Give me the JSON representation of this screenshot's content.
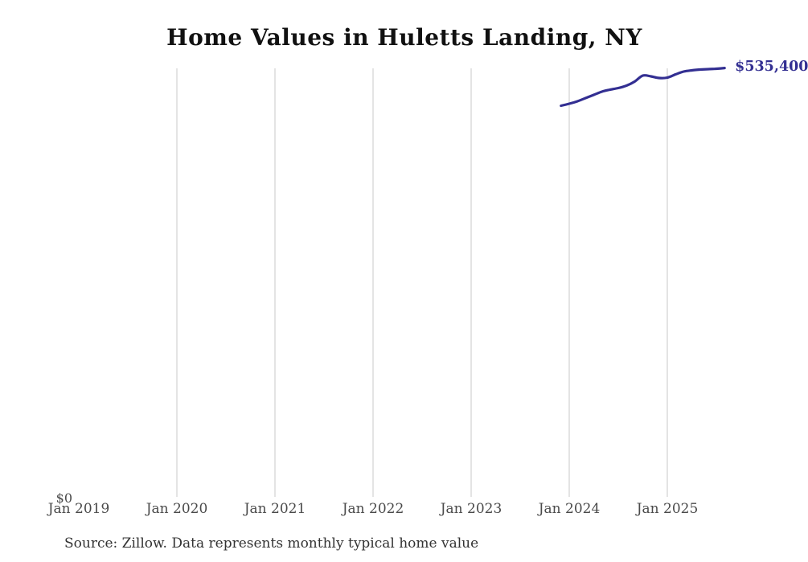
{
  "chart": {
    "title": "Home Values in Huletts Landing, NY",
    "end_label": "$535,400",
    "y_zero_label": "$0",
    "source_note": "Source: Zillow. Data represents monthly typical home value",
    "colors": {
      "line": "#332f92",
      "end_label": "#332f92",
      "gridline": "#c9c9c9",
      "tick_label": "#4a4a4a",
      "title": "#111111",
      "source": "#333333",
      "background": "#ffffff"
    }
  },
  "chart_data": {
    "type": "line",
    "title": "Home Values in Huletts Landing, NY",
    "xlabel": "",
    "ylabel": "",
    "unit": "USD",
    "grid": "vertical-only",
    "legend": "none",
    "ylim": [
      0,
      560000
    ],
    "x_axis_range": [
      "Jan 2019",
      "Sep 2025"
    ],
    "x_ticks": [
      "Jan 2019",
      "Jan 2020",
      "Jan 2021",
      "Jan 2022",
      "Jan 2023",
      "Jan 2024",
      "Jan 2025"
    ],
    "gridline_ticks": [
      "Jan 2020",
      "Jan 2021",
      "Jan 2022",
      "Jan 2023",
      "Jan 2024",
      "Jan 2025"
    ],
    "y_tick_labels": [
      "$0"
    ],
    "end_point_annotation": "$535,400",
    "series": [
      {
        "name": "Typical home value",
        "points": [
          {
            "month": "Dec 2023",
            "value": 488500
          },
          {
            "month": "Jan 2024",
            "value": 491000
          },
          {
            "month": "Feb 2024",
            "value": 494000
          },
          {
            "month": "Mar 2024",
            "value": 498000
          },
          {
            "month": "Apr 2024",
            "value": 502000
          },
          {
            "month": "May 2024",
            "value": 506000
          },
          {
            "month": "Jun 2024",
            "value": 508500
          },
          {
            "month": "Jul 2024",
            "value": 510500
          },
          {
            "month": "Aug 2024",
            "value": 513500
          },
          {
            "month": "Sep 2024",
            "value": 518500
          },
          {
            "month": "Oct 2024",
            "value": 526000
          },
          {
            "month": "Nov 2024",
            "value": 525000
          },
          {
            "month": "Dec 2024",
            "value": 523000
          },
          {
            "month": "Jan 2025",
            "value": 523500
          },
          {
            "month": "Feb 2025",
            "value": 527500
          },
          {
            "month": "Mar 2025",
            "value": 531000
          },
          {
            "month": "Apr 2025",
            "value": 532500
          },
          {
            "month": "May 2025",
            "value": 533500
          },
          {
            "month": "Jun 2025",
            "value": 534000
          },
          {
            "month": "Jul 2025",
            "value": 534500
          },
          {
            "month": "Aug 2025",
            "value": 535400
          }
        ]
      }
    ]
  }
}
